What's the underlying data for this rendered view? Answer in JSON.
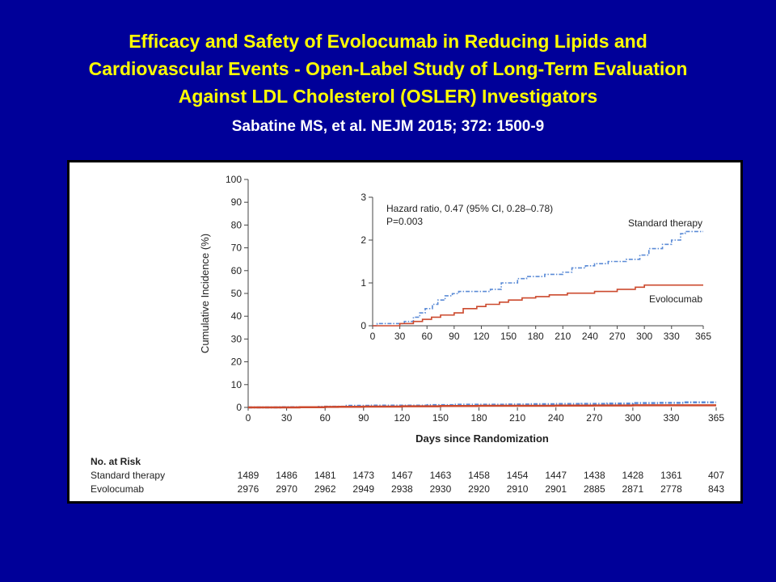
{
  "slide": {
    "title_lines": [
      "Efficacy and Safety of Evolocumab in Reducing Lipids and",
      "Cardiovascular Events -  Open-Label Study of Long-Term Evaluation",
      "Against LDL Cholesterol (OSLER) Investigators"
    ],
    "citation": "Sabatine MS, et al. NEJM 2015; 372: 1500-9",
    "colors": {
      "background": "#000099",
      "title": "#ffff00",
      "citation": "#ffffff"
    }
  },
  "chart_data": [
    {
      "type": "line",
      "panel": "main",
      "xlabel": "Days since Randomization",
      "ylabel": "Cumulative Incidence (%)",
      "xlim": [
        0,
        365
      ],
      "ylim": [
        0,
        100
      ],
      "x_ticks": [
        0,
        30,
        60,
        90,
        120,
        150,
        180,
        210,
        240,
        270,
        300,
        330,
        365
      ],
      "y_ticks": [
        0,
        10,
        20,
        30,
        40,
        50,
        60,
        70,
        80,
        90,
        100
      ],
      "grid": false,
      "series": [
        {
          "name": "Standard therapy",
          "color": "#5b8bd6",
          "style": "dashdot",
          "points": [
            [
              0,
              0
            ],
            [
              25,
              0.1
            ],
            [
              55,
              0.2
            ],
            [
              60,
              0.3
            ],
            [
              75,
              0.7
            ],
            [
              95,
              0.8
            ],
            [
              140,
              1.0
            ],
            [
              160,
              1.2
            ],
            [
              200,
              1.3
            ],
            [
              220,
              1.4
            ],
            [
              240,
              1.5
            ],
            [
              260,
              1.55
            ],
            [
              280,
              1.7
            ],
            [
              300,
              1.9
            ],
            [
              320,
              2.0
            ],
            [
              340,
              2.2
            ],
            [
              365,
              2.2
            ]
          ]
        },
        {
          "name": "Evolocumab",
          "color": "#cc4a2e",
          "style": "solid",
          "points": [
            [
              0,
              0
            ],
            [
              40,
              0.1
            ],
            [
              60,
              0.2
            ],
            [
              70,
              0.25
            ],
            [
              90,
              0.35
            ],
            [
              120,
              0.5
            ],
            [
              150,
              0.6
            ],
            [
              180,
              0.7
            ],
            [
              240,
              0.8
            ],
            [
              270,
              0.85
            ],
            [
              300,
              0.95
            ],
            [
              365,
              0.95
            ]
          ]
        }
      ]
    },
    {
      "type": "line",
      "panel": "inset",
      "annotation_lines": [
        "Hazard ratio, 0.47 (95% CI, 0.28–0.78)",
        "P=0.003"
      ],
      "xlim": [
        0,
        365
      ],
      "ylim": [
        0,
        3
      ],
      "x_ticks": [
        0,
        30,
        60,
        90,
        120,
        150,
        180,
        210,
        240,
        270,
        300,
        330,
        365
      ],
      "y_ticks": [
        0,
        1,
        2,
        3
      ],
      "grid": false,
      "series_labels": [
        "Standard therapy",
        "Evolocumab"
      ],
      "series": [
        {
          "name": "Standard therapy",
          "color": "#5b8bd6",
          "style": "dashdot",
          "points": [
            [
              0,
              0
            ],
            [
              5,
              0.05
            ],
            [
              25,
              0.05
            ],
            [
              35,
              0.1
            ],
            [
              45,
              0.2
            ],
            [
              52,
              0.3
            ],
            [
              58,
              0.4
            ],
            [
              66,
              0.5
            ],
            [
              72,
              0.6
            ],
            [
              80,
              0.7
            ],
            [
              88,
              0.75
            ],
            [
              95,
              0.8
            ],
            [
              130,
              0.85
            ],
            [
              142,
              1.0
            ],
            [
              160,
              1.1
            ],
            [
              170,
              1.15
            ],
            [
              190,
              1.2
            ],
            [
              210,
              1.25
            ],
            [
              220,
              1.35
            ],
            [
              235,
              1.4
            ],
            [
              245,
              1.45
            ],
            [
              260,
              1.5
            ],
            [
              280,
              1.55
            ],
            [
              295,
              1.65
            ],
            [
              305,
              1.8
            ],
            [
              320,
              1.9
            ],
            [
              330,
              2.0
            ],
            [
              340,
              2.15
            ],
            [
              345,
              2.2
            ],
            [
              365,
              2.2
            ]
          ]
        },
        {
          "name": "Evolocumab",
          "color": "#cc4a2e",
          "style": "solid",
          "points": [
            [
              0,
              0
            ],
            [
              25,
              0.0
            ],
            [
              30,
              0.05
            ],
            [
              45,
              0.1
            ],
            [
              55,
              0.15
            ],
            [
              65,
              0.2
            ],
            [
              75,
              0.25
            ],
            [
              90,
              0.3
            ],
            [
              100,
              0.4
            ],
            [
              115,
              0.45
            ],
            [
              125,
              0.5
            ],
            [
              140,
              0.55
            ],
            [
              150,
              0.6
            ],
            [
              165,
              0.65
            ],
            [
              180,
              0.68
            ],
            [
              195,
              0.72
            ],
            [
              215,
              0.76
            ],
            [
              245,
              0.8
            ],
            [
              270,
              0.85
            ],
            [
              290,
              0.9
            ],
            [
              300,
              0.95
            ],
            [
              365,
              0.95
            ]
          ]
        }
      ]
    }
  ],
  "risk_table": {
    "title": "No. at Risk",
    "rows": [
      {
        "label": "Standard therapy",
        "values": [
          "1489",
          "1486",
          "1481",
          "1473",
          "1467",
          "1463",
          "1458",
          "1454",
          "1447",
          "1438",
          "1428",
          "1361",
          "407"
        ]
      },
      {
        "label": "Evolocumab",
        "values": [
          "2976",
          "2970",
          "2962",
          "2949",
          "2938",
          "2930",
          "2920",
          "2910",
          "2901",
          "2885",
          "2871",
          "2778",
          "843"
        ]
      }
    ]
  }
}
